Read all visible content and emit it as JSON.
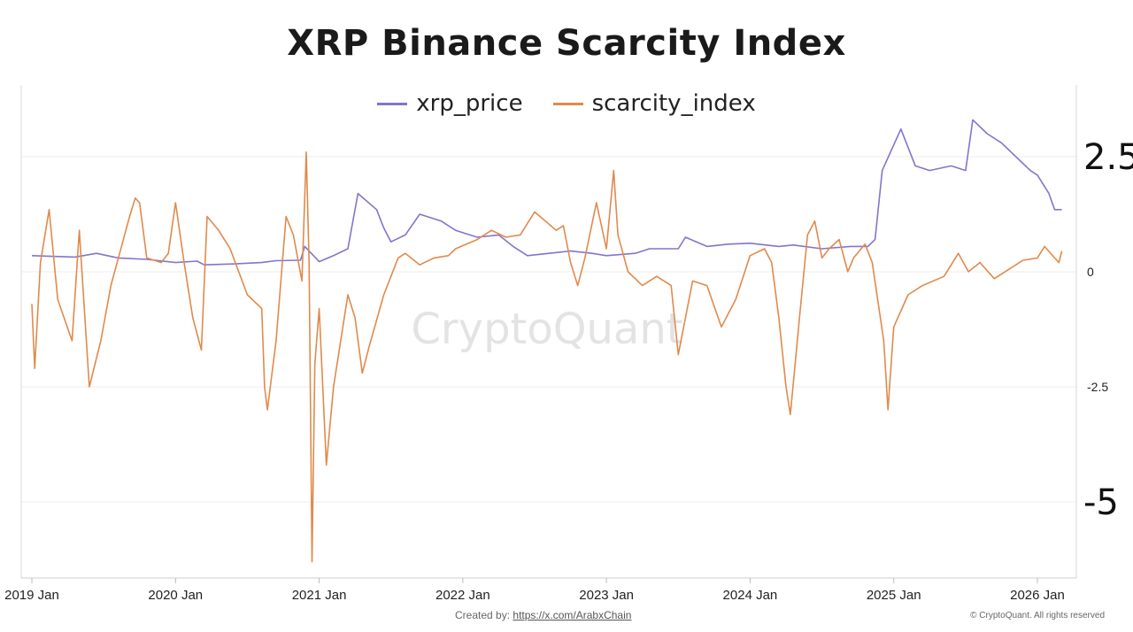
{
  "chart_data": {
    "type": "line",
    "title": "XRP Binance Scarcity Index",
    "x_ticks": [
      "2019 Jan",
      "2020 Jan",
      "2021 Jan",
      "2022 Jan",
      "2023 Jan",
      "2024 Jan",
      "2025 Jan",
      "2026 Jan"
    ],
    "y_ticks": [
      "2.5",
      "0",
      "-2.5",
      "-5"
    ],
    "ylim": [
      -6.5,
      3.6
    ],
    "grid": true,
    "legend_position": "top-center",
    "series": [
      {
        "name": "xrp_price",
        "color": "#8474cc",
        "points": [
          [
            2019.0,
            0.35
          ],
          [
            2019.3,
            0.32
          ],
          [
            2019.45,
            0.4
          ],
          [
            2019.6,
            0.3
          ],
          [
            2019.8,
            0.27
          ],
          [
            2020.0,
            0.2
          ],
          [
            2020.15,
            0.23
          ],
          [
            2020.2,
            0.15
          ],
          [
            2020.4,
            0.17
          ],
          [
            2020.6,
            0.2
          ],
          [
            2020.7,
            0.24
          ],
          [
            2020.87,
            0.25
          ],
          [
            2020.9,
            0.55
          ],
          [
            2021.0,
            0.22
          ],
          [
            2021.1,
            0.35
          ],
          [
            2021.2,
            0.5
          ],
          [
            2021.27,
            1.7
          ],
          [
            2021.4,
            1.35
          ],
          [
            2021.45,
            0.95
          ],
          [
            2021.5,
            0.65
          ],
          [
            2021.6,
            0.8
          ],
          [
            2021.7,
            1.25
          ],
          [
            2021.85,
            1.1
          ],
          [
            2021.95,
            0.9
          ],
          [
            2022.1,
            0.75
          ],
          [
            2022.25,
            0.8
          ],
          [
            2022.35,
            0.55
          ],
          [
            2022.45,
            0.35
          ],
          [
            2022.6,
            0.4
          ],
          [
            2022.75,
            0.45
          ],
          [
            2022.9,
            0.4
          ],
          [
            2023.0,
            0.35
          ],
          [
            2023.2,
            0.4
          ],
          [
            2023.3,
            0.5
          ],
          [
            2023.5,
            0.5
          ],
          [
            2023.55,
            0.75
          ],
          [
            2023.7,
            0.55
          ],
          [
            2023.85,
            0.6
          ],
          [
            2024.0,
            0.62
          ],
          [
            2024.2,
            0.55
          ],
          [
            2024.3,
            0.58
          ],
          [
            2024.5,
            0.5
          ],
          [
            2024.7,
            0.55
          ],
          [
            2024.82,
            0.55
          ],
          [
            2024.87,
            0.7
          ],
          [
            2024.92,
            2.2
          ],
          [
            2025.05,
            3.1
          ],
          [
            2025.15,
            2.3
          ],
          [
            2025.25,
            2.2
          ],
          [
            2025.4,
            2.3
          ],
          [
            2025.5,
            2.2
          ],
          [
            2025.55,
            3.3
          ],
          [
            2025.65,
            3.0
          ],
          [
            2025.75,
            2.8
          ],
          [
            2025.85,
            2.5
          ],
          [
            2025.95,
            2.2
          ],
          [
            2026.0,
            2.1
          ],
          [
            2026.08,
            1.7
          ],
          [
            2026.12,
            1.35
          ],
          [
            2026.17,
            1.35
          ]
        ]
      },
      {
        "name": "scarcity_index",
        "color": "#e08a4c",
        "points": [
          [
            2019.0,
            -0.7
          ],
          [
            2019.02,
            -2.1
          ],
          [
            2019.06,
            0.2
          ],
          [
            2019.12,
            1.35
          ],
          [
            2019.18,
            -0.6
          ],
          [
            2019.28,
            -1.5
          ],
          [
            2019.33,
            0.9
          ],
          [
            2019.4,
            -2.5
          ],
          [
            2019.48,
            -1.5
          ],
          [
            2019.55,
            -0.3
          ],
          [
            2019.68,
            1.2
          ],
          [
            2019.72,
            1.6
          ],
          [
            2019.75,
            1.5
          ],
          [
            2019.8,
            0.3
          ],
          [
            2019.9,
            0.2
          ],
          [
            2019.95,
            0.4
          ],
          [
            2020.0,
            1.5
          ],
          [
            2020.06,
            0.2
          ],
          [
            2020.12,
            -1.0
          ],
          [
            2020.18,
            -1.7
          ],
          [
            2020.22,
            1.2
          ],
          [
            2020.3,
            0.9
          ],
          [
            2020.38,
            0.5
          ],
          [
            2020.5,
            -0.5
          ],
          [
            2020.6,
            -0.8
          ],
          [
            2020.62,
            -2.5
          ],
          [
            2020.64,
            -3.0
          ],
          [
            2020.7,
            -1.5
          ],
          [
            2020.77,
            1.2
          ],
          [
            2020.82,
            0.8
          ],
          [
            2020.88,
            -0.2
          ],
          [
            2020.91,
            2.6
          ],
          [
            2020.93,
            0.2
          ],
          [
            2020.95,
            -6.3
          ],
          [
            2020.97,
            -2.0
          ],
          [
            2021.0,
            -0.8
          ],
          [
            2021.05,
            -4.2
          ],
          [
            2021.1,
            -2.5
          ],
          [
            2021.15,
            -1.5
          ],
          [
            2021.2,
            -0.5
          ],
          [
            2021.25,
            -1.0
          ],
          [
            2021.3,
            -2.2
          ],
          [
            2021.35,
            -1.6
          ],
          [
            2021.45,
            -0.5
          ],
          [
            2021.55,
            0.3
          ],
          [
            2021.6,
            0.4
          ],
          [
            2021.7,
            0.15
          ],
          [
            2021.8,
            0.3
          ],
          [
            2021.9,
            0.35
          ],
          [
            2021.95,
            0.5
          ],
          [
            2022.1,
            0.7
          ],
          [
            2022.2,
            0.9
          ],
          [
            2022.3,
            0.75
          ],
          [
            2022.4,
            0.8
          ],
          [
            2022.5,
            1.3
          ],
          [
            2022.65,
            0.9
          ],
          [
            2022.7,
            1.0
          ],
          [
            2022.75,
            0.2
          ],
          [
            2022.8,
            -0.3
          ],
          [
            2022.85,
            0.3
          ],
          [
            2022.93,
            1.5
          ],
          [
            2023.0,
            0.5
          ],
          [
            2023.05,
            2.2
          ],
          [
            2023.08,
            0.8
          ],
          [
            2023.15,
            0.0
          ],
          [
            2023.25,
            -0.3
          ],
          [
            2023.35,
            -0.1
          ],
          [
            2023.45,
            -0.3
          ],
          [
            2023.5,
            -1.8
          ],
          [
            2023.6,
            -0.2
          ],
          [
            2023.7,
            -0.3
          ],
          [
            2023.8,
            -1.2
          ],
          [
            2023.9,
            -0.6
          ],
          [
            2024.0,
            0.35
          ],
          [
            2024.1,
            0.5
          ],
          [
            2024.15,
            0.2
          ],
          [
            2024.2,
            -1.0
          ],
          [
            2024.25,
            -2.5
          ],
          [
            2024.28,
            -3.1
          ],
          [
            2024.35,
            -0.8
          ],
          [
            2024.4,
            0.8
          ],
          [
            2024.45,
            1.1
          ],
          [
            2024.5,
            0.3
          ],
          [
            2024.55,
            0.5
          ],
          [
            2024.62,
            0.7
          ],
          [
            2024.68,
            0.0
          ],
          [
            2024.72,
            0.3
          ],
          [
            2024.8,
            0.6
          ],
          [
            2024.85,
            0.2
          ],
          [
            2024.93,
            -1.5
          ],
          [
            2024.96,
            -3.0
          ],
          [
            2025.0,
            -1.2
          ],
          [
            2025.1,
            -0.5
          ],
          [
            2025.2,
            -0.3
          ],
          [
            2025.35,
            -0.1
          ],
          [
            2025.45,
            0.4
          ],
          [
            2025.52,
            0.0
          ],
          [
            2025.6,
            0.2
          ],
          [
            2025.7,
            -0.15
          ],
          [
            2025.8,
            0.05
          ],
          [
            2025.9,
            0.25
          ],
          [
            2026.0,
            0.3
          ],
          [
            2026.05,
            0.55
          ],
          [
            2026.12,
            0.3
          ],
          [
            2026.15,
            0.2
          ],
          [
            2026.17,
            0.45
          ]
        ]
      }
    ]
  },
  "credit": {
    "prefix": "Created by:",
    "link": "https://x.com/ArabxChain"
  },
  "copyright": "© CryptoQuant. All rights reserved",
  "watermark": "CryptoQuant"
}
